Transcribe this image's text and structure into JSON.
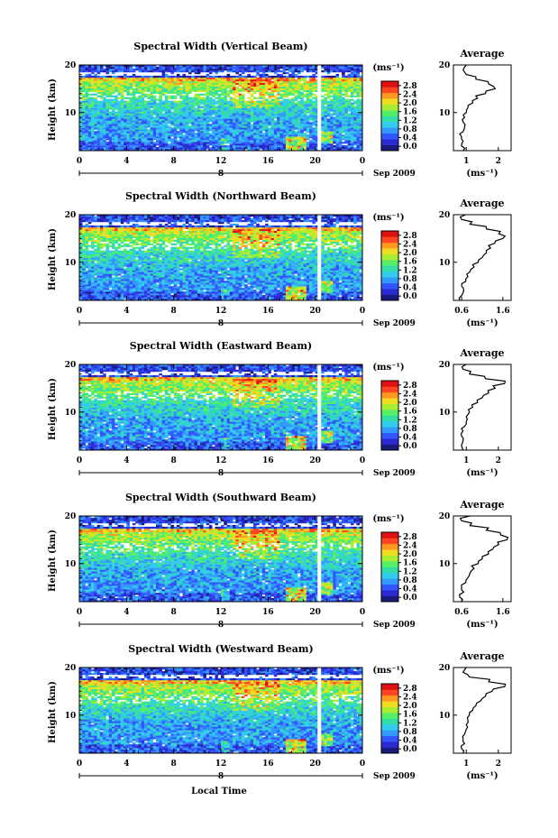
{
  "chart_data": [
    {
      "type": "heatmap",
      "title": "Spectral Width (Vertical Beam)",
      "ylabel": "Height (km)",
      "ylim": [
        2,
        20
      ],
      "yticks": [
        "10",
        "20"
      ],
      "xlim": [
        0,
        24
      ],
      "xticks": [
        "0",
        "4",
        "8",
        "12",
        "16",
        "20",
        "0"
      ],
      "date_marker": "8",
      "date_label": "Sep 2009",
      "colorbar_unit": "(ms⁻¹)",
      "colorbar_ticks": [
        "0.0",
        "0.4",
        "0.8",
        "1.2",
        "1.6",
        "2.0",
        "2.4",
        "2.8"
      ],
      "profile": {
        "title": "Average",
        "xlabel": "(ms⁻¹)",
        "xticks": [
          "1",
          "2"
        ],
        "xlim": [
          0.6,
          2.4
        ],
        "heights": [
          2,
          3,
          4,
          5,
          6,
          7,
          8,
          9,
          10,
          11,
          12,
          13,
          14,
          15,
          16,
          17,
          18,
          19,
          20
        ],
        "values": [
          0.9,
          0.85,
          0.9,
          0.85,
          0.9,
          0.95,
          0.9,
          0.95,
          1.0,
          1.05,
          1.2,
          1.35,
          1.6,
          1.9,
          1.7,
          1.3,
          1.0,
          0.9,
          1.0
        ]
      }
    },
    {
      "type": "heatmap",
      "title": "Spectral Width (Northward Beam)",
      "ylabel": "Height (km)",
      "ylim": [
        2,
        20
      ],
      "yticks": [
        "10",
        "20"
      ],
      "xlim": [
        0,
        24
      ],
      "xticks": [
        "0",
        "4",
        "8",
        "12",
        "16",
        "20",
        "0"
      ],
      "date_marker": "8",
      "date_label": "Sep 2009",
      "colorbar_unit": "(ms⁻¹)",
      "colorbar_ticks": [
        "0.0",
        "0.4",
        "0.8",
        "1.2",
        "1.6",
        "2.0",
        "2.4",
        "2.8"
      ],
      "profile": {
        "title": "Average",
        "xlabel": "(ms⁻¹)",
        "xticks": [
          "0.6",
          "1.6"
        ],
        "xlim": [
          0.4,
          1.8
        ],
        "heights": [
          2,
          3,
          4,
          5,
          6,
          7,
          8,
          9,
          10,
          11,
          12,
          13,
          14,
          15,
          16,
          17,
          18,
          19,
          20
        ],
        "values": [
          0.55,
          0.6,
          0.65,
          0.6,
          0.7,
          0.75,
          0.8,
          0.9,
          1.0,
          1.1,
          1.2,
          1.3,
          1.4,
          1.6,
          1.5,
          1.2,
          0.8,
          0.6,
          0.7
        ]
      }
    },
    {
      "type": "heatmap",
      "title": "Spectral Width (Eastward Beam)",
      "ylabel": "Height (km)",
      "ylim": [
        2,
        20
      ],
      "yticks": [
        "10",
        "20"
      ],
      "xlim": [
        0,
        24
      ],
      "xticks": [
        "0",
        "4",
        "8",
        "12",
        "16",
        "20",
        "0"
      ],
      "date_marker": "8",
      "date_label": "Sep 2009",
      "colorbar_unit": "(ms⁻¹)",
      "colorbar_ticks": [
        "0.0",
        "0.4",
        "0.8",
        "1.2",
        "1.6",
        "2.0",
        "2.4",
        "2.8"
      ],
      "profile": {
        "title": "Average",
        "xlabel": "(ms⁻¹)",
        "xticks": [
          "1",
          "2"
        ],
        "xlim": [
          0.6,
          2.4
        ],
        "heights": [
          2,
          3,
          4,
          5,
          6,
          7,
          8,
          9,
          10,
          11,
          12,
          13,
          14,
          15,
          16,
          17,
          18,
          19,
          20
        ],
        "values": [
          0.9,
          0.85,
          0.9,
          0.85,
          0.9,
          0.95,
          1.0,
          1.0,
          1.1,
          1.2,
          1.35,
          1.5,
          1.7,
          1.9,
          2.2,
          1.6,
          1.1,
          0.9,
          1.0
        ]
      }
    },
    {
      "type": "heatmap",
      "title": "Spectral Width (Southward Beam)",
      "ylabel": "Height (km)",
      "ylim": [
        2,
        20
      ],
      "yticks": [
        "10",
        "20"
      ],
      "xlim": [
        0,
        24
      ],
      "xticks": [
        "0",
        "4",
        "8",
        "12",
        "16",
        "20",
        "0"
      ],
      "date_marker": "8",
      "date_label": "Sep 2009",
      "colorbar_unit": "(ms⁻¹)",
      "colorbar_ticks": [
        "0.0",
        "0.4",
        "0.8",
        "1.2",
        "1.6",
        "2.0",
        "2.4",
        "2.8"
      ],
      "profile": {
        "title": "Average",
        "xlabel": "(ms⁻¹)",
        "xticks": [
          "0.6",
          "1.6"
        ],
        "xlim": [
          0.4,
          1.8
        ],
        "heights": [
          2,
          3,
          4,
          5,
          6,
          7,
          8,
          9,
          10,
          11,
          12,
          13,
          14,
          15,
          16,
          17,
          18,
          19,
          20
        ],
        "values": [
          0.6,
          0.55,
          0.65,
          0.6,
          0.7,
          0.75,
          0.8,
          0.9,
          1.0,
          1.1,
          1.25,
          1.35,
          1.5,
          1.7,
          1.55,
          1.2,
          0.8,
          0.6,
          0.8
        ]
      }
    },
    {
      "type": "heatmap",
      "title": "Spectral Width (Westward Beam)",
      "ylabel": "Height (km)",
      "ylim": [
        2,
        20
      ],
      "yticks": [
        "10",
        "20"
      ],
      "xlim": [
        0,
        24
      ],
      "xticks": [
        "0",
        "4",
        "8",
        "12",
        "16",
        "20",
        "0"
      ],
      "date_marker": "8",
      "date_label": "Sep 2009",
      "colorbar_unit": "(ms⁻¹)",
      "colorbar_ticks": [
        "0.0",
        "0.4",
        "0.8",
        "1.2",
        "1.6",
        "2.0",
        "2.4",
        "2.8"
      ],
      "profile": {
        "title": "Average",
        "xlabel": "(ms⁻¹)",
        "xticks": [
          "1",
          "2"
        ],
        "xlim": [
          0.6,
          2.4
        ],
        "heights": [
          2,
          3,
          4,
          5,
          6,
          7,
          8,
          9,
          10,
          11,
          12,
          13,
          14,
          15,
          16,
          17,
          18,
          19,
          20
        ],
        "values": [
          0.9,
          0.85,
          0.95,
          0.9,
          0.95,
          1.0,
          1.0,
          1.05,
          1.1,
          1.2,
          1.3,
          1.45,
          1.6,
          1.8,
          2.2,
          1.7,
          1.1,
          0.9,
          1.0
        ]
      }
    }
  ],
  "figure": {
    "xlabel": "Local Time"
  },
  "colors": {
    "colormap": [
      "#1a1a7a",
      "#2a2ad0",
      "#3355ff",
      "#3399ff",
      "#33ccee",
      "#33ddaa",
      "#55ee66",
      "#aaee33",
      "#eedd22",
      "#ff9922",
      "#ff4422",
      "#dd1111"
    ]
  }
}
